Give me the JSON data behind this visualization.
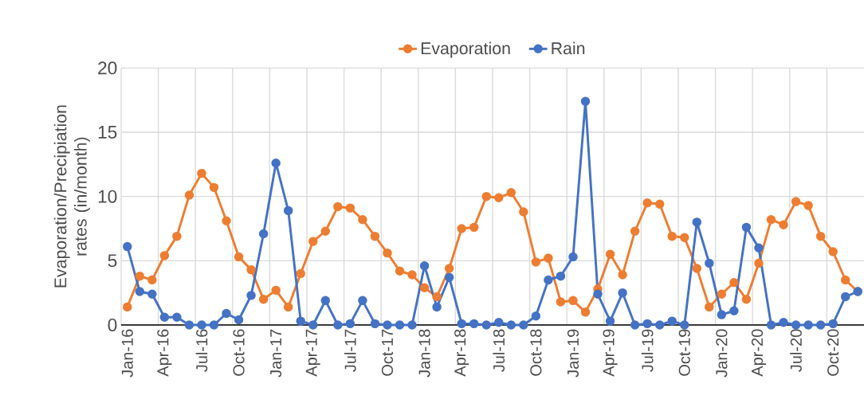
{
  "chart_data": {
    "type": "line",
    "ylabel": "Evaporation/Precipiation rates (in/month)",
    "categories": [
      "Jan-16",
      null,
      null,
      "Apr-16",
      null,
      null,
      "Jul-16",
      null,
      null,
      "Oct-16",
      null,
      null,
      "Jan-17",
      null,
      null,
      "Apr-17",
      null,
      null,
      "Jul-17",
      null,
      null,
      "Oct-17",
      null,
      null,
      "Jan-18",
      null,
      null,
      "Apr-18",
      null,
      null,
      "Jul-18",
      null,
      null,
      "Oct-18",
      null,
      null,
      "Jan-19",
      null,
      null,
      "Apr-19",
      null,
      null,
      "Jul-19",
      null,
      null,
      "Oct-19",
      null,
      null,
      "Jan-20",
      null,
      null,
      "Apr-20",
      null,
      null,
      "Jul-20",
      null,
      null,
      "Oct-20",
      null,
      null
    ],
    "series": [
      {
        "name": "Evaporation",
        "color": "#ed7d31",
        "values": [
          1.4,
          3.8,
          3.5,
          5.4,
          6.9,
          10.1,
          11.8,
          10.7,
          8.1,
          5.3,
          4.3,
          2.0,
          2.7,
          1.4,
          4.0,
          6.5,
          7.3,
          9.2,
          9.1,
          8.2,
          6.9,
          5.6,
          4.2,
          3.9,
          2.9,
          2.2,
          4.4,
          7.5,
          7.6,
          10.0,
          9.9,
          10.3,
          8.8,
          4.9,
          5.2,
          1.8,
          1.9,
          1.0,
          2.8,
          5.5,
          3.9,
          7.3,
          9.5,
          9.4,
          6.9,
          6.8,
          4.4,
          1.4,
          2.4,
          3.3,
          2.0,
          4.8,
          8.2,
          7.8,
          9.6,
          9.3,
          6.9,
          5.7,
          3.5,
          2.6
        ]
      },
      {
        "name": "Rain",
        "color": "#4472c4",
        "values": [
          6.1,
          2.6,
          2.4,
          0.6,
          0.6,
          0,
          0,
          0,
          0.9,
          0.4,
          2.3,
          7.1,
          12.6,
          8.9,
          0.3,
          0,
          1.9,
          0,
          0.1,
          1.9,
          0.1,
          0,
          0,
          0,
          4.6,
          1.4,
          3.7,
          0.1,
          0.1,
          0,
          0.2,
          0,
          0,
          0.7,
          3.5,
          3.8,
          5.3,
          17.4,
          2.4,
          0.3,
          2.5,
          0,
          0.1,
          0,
          0.3,
          0,
          8.0,
          4.8,
          0.8,
          1.1,
          7.6,
          6.0,
          0,
          0.2,
          0,
          0,
          0,
          0.1,
          2.2,
          2.6
        ]
      }
    ],
    "ylim": [
      0,
      20
    ],
    "yticks": [
      0,
      5,
      10,
      15,
      20
    ],
    "grid": true,
    "legend": "top",
    "marker": "circle",
    "line_style": "solid"
  }
}
